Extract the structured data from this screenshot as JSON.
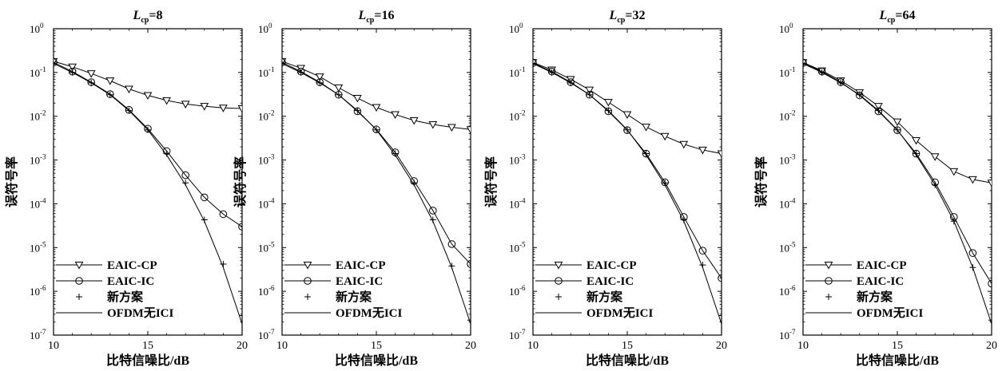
{
  "chart_data": [
    {
      "type": "line",
      "title": "L_cp=8",
      "title_main": "L",
      "title_sub": "cp",
      "title_rest": "=8",
      "xlabel": "比特信噪比/dB",
      "ylabel": "误符号率",
      "xlim": [
        10,
        20
      ],
      "ylim": [
        1e-07,
        1
      ],
      "yscale": "log",
      "x_ticks": [
        "10",
        "15",
        "20"
      ],
      "y_ticks_exp": [
        "0",
        "-1",
        "-2",
        "-3",
        "-4",
        "-5",
        "-6",
        "-7"
      ],
      "legend_position": "bottom-left",
      "series": [
        {
          "name": "EAIC-CP",
          "marker": "triangle-down",
          "line": true,
          "x": [
            10,
            11,
            12,
            13,
            14,
            15,
            16,
            17,
            18,
            19,
            20
          ],
          "y": [
            0.18,
            0.135,
            0.095,
            0.065,
            0.042,
            0.03,
            0.023,
            0.019,
            0.017,
            0.0155,
            0.015
          ]
        },
        {
          "name": "EAIC-IC",
          "marker": "circle",
          "line": true,
          "x": [
            10,
            11,
            12,
            13,
            14,
            15,
            16,
            17,
            18,
            19,
            20
          ],
          "y": [
            0.17,
            0.105,
            0.06,
            0.032,
            0.014,
            0.0052,
            0.0016,
            0.00045,
            0.00014,
            5.8e-05,
            3e-05
          ]
        },
        {
          "name": "新方案",
          "marker": "plus",
          "line": false,
          "x": [
            10,
            11,
            12,
            13,
            14,
            15,
            16,
            17,
            18,
            19,
            20
          ],
          "y": [
            0.16,
            0.1,
            0.058,
            0.031,
            0.0135,
            0.0049,
            0.0014,
            0.0003,
            4.3e-05,
            4.2e-06,
            2.8e-07
          ]
        },
        {
          "name": "OFDM无ICI",
          "marker": "none",
          "line": true,
          "x": [
            10,
            11,
            12,
            13,
            14,
            15,
            16,
            17,
            18,
            19,
            20
          ],
          "y": [
            0.16,
            0.1,
            0.058,
            0.031,
            0.0135,
            0.0049,
            0.0013,
            0.00027,
            4e-05,
            3.5e-06,
            1.8e-07
          ]
        }
      ]
    },
    {
      "type": "line",
      "title": "L_cp=16",
      "title_main": "L",
      "title_sub": "cp",
      "title_rest": "=16",
      "xlabel": "比特信噪比/dB",
      "ylabel": "误符号率",
      "xlim": [
        10,
        20
      ],
      "ylim": [
        1e-07,
        1
      ],
      "yscale": "log",
      "x_ticks": [
        "10",
        "15",
        "20"
      ],
      "y_ticks_exp": [
        "0",
        "-1",
        "-2",
        "-3",
        "-4",
        "-5",
        "-6",
        "-7"
      ],
      "legend_position": "bottom-left",
      "series": [
        {
          "name": "EAIC-CP",
          "marker": "triangle-down",
          "line": true,
          "x": [
            10,
            11,
            12,
            13,
            14,
            15,
            16,
            17,
            18,
            19,
            20
          ],
          "y": [
            0.18,
            0.125,
            0.08,
            0.045,
            0.026,
            0.016,
            0.011,
            0.008,
            0.0065,
            0.0056,
            0.005
          ]
        },
        {
          "name": "EAIC-IC",
          "marker": "circle",
          "line": true,
          "x": [
            10,
            11,
            12,
            13,
            14,
            15,
            16,
            17,
            18,
            19,
            20
          ],
          "y": [
            0.17,
            0.105,
            0.06,
            0.031,
            0.013,
            0.005,
            0.0015,
            0.00033,
            7e-05,
            1.2e-05,
            4.2e-06
          ]
        },
        {
          "name": "新方案",
          "marker": "plus",
          "line": false,
          "x": [
            10,
            11,
            12,
            13,
            14,
            15,
            16,
            17,
            18,
            19,
            20
          ],
          "y": [
            0.16,
            0.1,
            0.058,
            0.031,
            0.0135,
            0.0049,
            0.0014,
            0.0003,
            4.3e-05,
            3.8e-06,
            2.2e-07
          ]
        },
        {
          "name": "OFDM无ICI",
          "marker": "none",
          "line": true,
          "x": [
            10,
            11,
            12,
            13,
            14,
            15,
            16,
            17,
            18,
            19,
            20
          ],
          "y": [
            0.16,
            0.1,
            0.058,
            0.031,
            0.0135,
            0.0049,
            0.0013,
            0.00027,
            4e-05,
            3.5e-06,
            1.8e-07
          ]
        }
      ]
    },
    {
      "type": "line",
      "title": "L_cp=32",
      "title_main": "L",
      "title_sub": "cp",
      "title_rest": "=32",
      "xlabel": "比特信噪比/dB",
      "ylabel": "误符号率",
      "xlim": [
        10,
        20
      ],
      "ylim": [
        1e-07,
        1
      ],
      "yscale": "log",
      "x_ticks": [
        "10",
        "15",
        "20"
      ],
      "y_ticks_exp": [
        "0",
        "-1",
        "-2",
        "-3",
        "-4",
        "-5",
        "-6",
        "-7"
      ],
      "legend_position": "bottom-left",
      "series": [
        {
          "name": "EAIC-CP",
          "marker": "triangle-down",
          "line": true,
          "x": [
            10,
            11,
            12,
            13,
            14,
            15,
            16,
            17,
            18,
            19,
            20
          ],
          "y": [
            0.17,
            0.115,
            0.07,
            0.04,
            0.021,
            0.011,
            0.0057,
            0.0035,
            0.0023,
            0.0017,
            0.0014
          ]
        },
        {
          "name": "EAIC-IC",
          "marker": "circle",
          "line": true,
          "x": [
            10,
            11,
            12,
            13,
            14,
            15,
            16,
            17,
            18,
            19,
            20
          ],
          "y": [
            0.165,
            0.105,
            0.06,
            0.031,
            0.013,
            0.0048,
            0.0014,
            0.00031,
            5e-05,
            8.5e-06,
            2e-06
          ]
        },
        {
          "name": "新方案",
          "marker": "plus",
          "line": false,
          "x": [
            10,
            11,
            12,
            13,
            14,
            15,
            16,
            17,
            18,
            19,
            20
          ],
          "y": [
            0.16,
            0.1,
            0.058,
            0.031,
            0.0135,
            0.0049,
            0.0014,
            0.0003,
            4.3e-05,
            4e-06,
            2.8e-07
          ]
        },
        {
          "name": "OFDM无ICI",
          "marker": "none",
          "line": true,
          "x": [
            10,
            11,
            12,
            13,
            14,
            15,
            16,
            17,
            18,
            19,
            20
          ],
          "y": [
            0.16,
            0.1,
            0.058,
            0.031,
            0.0135,
            0.0049,
            0.0013,
            0.00027,
            4e-05,
            3.5e-06,
            1.8e-07
          ]
        }
      ]
    },
    {
      "type": "line",
      "title": "L_cp=64",
      "title_main": "L",
      "title_sub": "cp",
      "title_rest": "=64",
      "xlabel": "比特信噪比/dB",
      "ylabel": "误符号率",
      "xlim": [
        10,
        20
      ],
      "ylim": [
        1e-07,
        1
      ],
      "yscale": "log",
      "x_ticks": [
        "10",
        "15",
        "20"
      ],
      "y_ticks_exp": [
        "0",
        "-1",
        "-2",
        "-3",
        "-4",
        "-5",
        "-6",
        "-7"
      ],
      "legend_position": "bottom-left",
      "series": [
        {
          "name": "EAIC-CP",
          "marker": "triangle-down",
          "line": true,
          "x": [
            10,
            11,
            12,
            13,
            14,
            15,
            16,
            17,
            18,
            19,
            20
          ],
          "y": [
            0.17,
            0.11,
            0.065,
            0.035,
            0.017,
            0.0075,
            0.0028,
            0.0012,
            0.00055,
            0.00036,
            0.0003
          ]
        },
        {
          "name": "EAIC-IC",
          "marker": "circle",
          "line": true,
          "x": [
            10,
            11,
            12,
            13,
            14,
            15,
            16,
            17,
            18,
            19,
            20
          ],
          "y": [
            0.165,
            0.105,
            0.06,
            0.03,
            0.013,
            0.0048,
            0.0014,
            0.00031,
            5e-05,
            7.5e-06,
            1.5e-06
          ]
        },
        {
          "name": "新方案",
          "marker": "plus",
          "line": false,
          "x": [
            10,
            11,
            12,
            13,
            14,
            15,
            16,
            17,
            18,
            19,
            20
          ],
          "y": [
            0.16,
            0.1,
            0.058,
            0.031,
            0.0135,
            0.0049,
            0.0014,
            0.00027,
            4e-05,
            3.5e-06,
            2.2e-07
          ]
        },
        {
          "name": "OFDM无ICI",
          "marker": "none",
          "line": true,
          "x": [
            10,
            11,
            12,
            13,
            14,
            15,
            16,
            17,
            18,
            19,
            20
          ],
          "y": [
            0.16,
            0.1,
            0.058,
            0.031,
            0.0135,
            0.0049,
            0.0013,
            0.00027,
            4e-05,
            3.5e-06,
            1.8e-07
          ]
        }
      ]
    }
  ]
}
